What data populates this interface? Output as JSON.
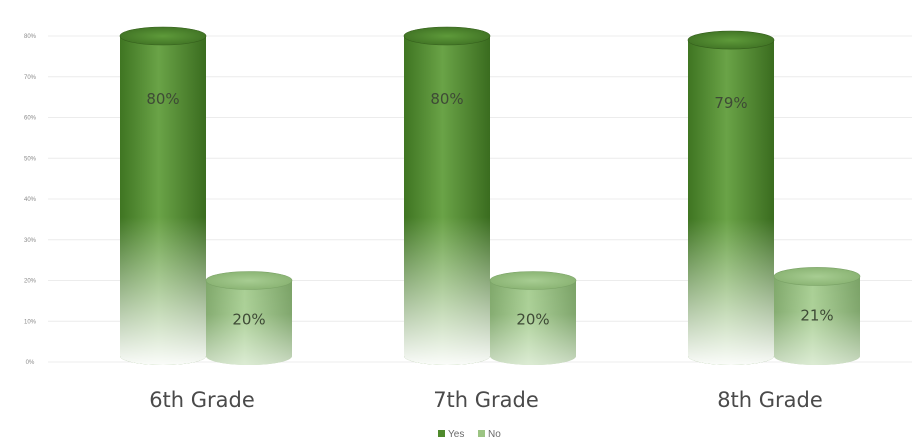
{
  "chart_data": {
    "type": "bar",
    "categories": [
      "6th Grade",
      "7th Grade",
      "8th Grade"
    ],
    "series": [
      {
        "name": "Yes",
        "values": [
          80,
          80,
          79
        ],
        "labels": [
          "80%",
          "80%",
          "79%"
        ],
        "color": "#4f8a2c"
      },
      {
        "name": "No",
        "values": [
          20,
          20,
          21
        ],
        "labels": [
          "20%",
          "20%",
          "21%"
        ],
        "color": "#9cc483"
      }
    ],
    "y_ticks": [
      "0%",
      "10%",
      "20%",
      "30%",
      "40%",
      "50%",
      "60%",
      "70%",
      "80%"
    ],
    "ylim": [
      0,
      80
    ],
    "grid": true,
    "legend_position": "bottom-center",
    "style": "3d-cylinder"
  }
}
